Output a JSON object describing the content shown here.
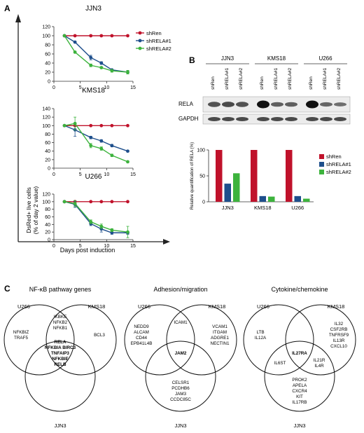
{
  "panels": {
    "a": "A",
    "b": "B",
    "c": "C"
  },
  "colors": {
    "shRen": "#c0122b",
    "shRELA1": "#1e4f8c",
    "shRELA2": "#3db33d",
    "axis": "#333333"
  },
  "panel_a": {
    "y_label_line1": "DsRed+ live cells",
    "y_label_line2": "(% of day 2 value)",
    "x_label": "Days post induction",
    "legend": [
      "shRen",
      "shRELA#1",
      "shRELA#2"
    ]
  },
  "chart_data": [
    {
      "type": "line",
      "title": "JJN3",
      "x": [
        2,
        4,
        7,
        9,
        11,
        14
      ],
      "xlim": [
        0,
        15
      ],
      "ylim": [
        0,
        120
      ],
      "xticks": [
        0,
        5,
        10,
        15
      ],
      "yticks": [
        0,
        20,
        40,
        60,
        80,
        100,
        120
      ],
      "series": [
        {
          "name": "shRen",
          "values": [
            100,
            100,
            100,
            100,
            100,
            100
          ]
        },
        {
          "name": "shRELA#1",
          "values": [
            100,
            86,
            52,
            40,
            25,
            20
          ]
        },
        {
          "name": "shRELA#2",
          "values": [
            100,
            64,
            35,
            30,
            23,
            20
          ]
        }
      ]
    },
    {
      "type": "line",
      "title": "KMS18",
      "x": [
        2,
        4,
        7,
        9,
        11,
        14
      ],
      "xlim": [
        0,
        15
      ],
      "ylim": [
        0,
        140
      ],
      "xticks": [
        0,
        5,
        10,
        15
      ],
      "yticks": [
        0,
        20,
        40,
        60,
        80,
        100,
        120,
        140
      ],
      "series": [
        {
          "name": "shRen",
          "values": [
            100,
            100,
            100,
            100,
            100,
            100
          ]
        },
        {
          "name": "shRELA#1",
          "values": [
            100,
            90,
            72,
            64,
            53,
            40
          ]
        },
        {
          "name": "shRELA#2",
          "values": [
            100,
            105,
            53,
            46,
            30,
            15
          ]
        }
      ]
    },
    {
      "type": "line",
      "title": "U266",
      "x": [
        2,
        4,
        7,
        9,
        11,
        14
      ],
      "xlim": [
        0,
        15
      ],
      "ylim": [
        0,
        120
      ],
      "xticks": [
        0,
        5,
        10,
        15
      ],
      "yticks": [
        0,
        20,
        40,
        60,
        80,
        100,
        120
      ],
      "series": [
        {
          "name": "shRen",
          "values": [
            100,
            100,
            100,
            100,
            100,
            100
          ]
        },
        {
          "name": "shRELA#1",
          "values": [
            100,
            93,
            42,
            28,
            18,
            18
          ]
        },
        {
          "name": "shRELA#2",
          "values": [
            100,
            95,
            47,
            35,
            25,
            20
          ]
        }
      ]
    },
    {
      "type": "bar",
      "categories": [
        "JJN3",
        "KMS18",
        "U266"
      ],
      "ylabel": "Relative quantification of RELA (%)",
      "ylim": [
        0,
        100
      ],
      "yticks": [
        0,
        50,
        100
      ],
      "legend_position": "right",
      "series": [
        {
          "name": "shRen",
          "values": [
            100,
            100,
            100
          ]
        },
        {
          "name": "shRELA#1",
          "values": [
            35,
            11,
            11
          ]
        },
        {
          "name": "shRELA#2",
          "values": [
            55,
            10,
            6
          ]
        }
      ]
    }
  ],
  "western": {
    "cell_lines": [
      "JJN3",
      "KMS18",
      "U266"
    ],
    "lanes": [
      "shRen",
      "shRELA#1",
      "shRELA#2"
    ],
    "bands": [
      "RELA",
      "GAPDH"
    ],
    "rela_intensity": [
      0.55,
      0.6,
      0.55,
      1.0,
      0.45,
      0.45,
      1.0,
      0.4,
      0.35
    ],
    "gapdh_intensity": [
      0.6,
      0.6,
      0.6,
      0.6,
      0.6,
      0.6,
      0.6,
      0.6,
      0.6
    ]
  },
  "venn": [
    {
      "title": "NF-κB pathway genes",
      "sets": [
        "U266",
        "KMS18",
        "JJN3"
      ],
      "u_only": [
        "NFKBIZ",
        "TRAF5"
      ],
      "k_only": [
        "BCL3"
      ],
      "uk": [
        "IKBKE",
        "NFKB2",
        "NFKB1"
      ],
      "uj": [],
      "kj": [],
      "j_only": [],
      "all": [
        "RELA",
        "NFKBIA BIRC3",
        "TNFAIP3",
        "NFKBIE",
        "RELB"
      ]
    },
    {
      "title": "Adhesion/migration",
      "sets": [
        "U266",
        "KMS18",
        "JJN3"
      ],
      "u_only": [
        "NEDD9",
        "ALCAM",
        "CD44",
        "EPB41L4B"
      ],
      "k_only": [
        "VCAM1",
        "ITGAM",
        "ADGRE1",
        "NECTIN1"
      ],
      "uk": [
        "ICAM1"
      ],
      "uj": [],
      "kj": [],
      "j_only": [
        "CELSR1",
        "PCDHB6",
        "JAM3",
        "CCDC85C"
      ],
      "all": [
        "JAM2"
      ]
    },
    {
      "title": "Cytokine/chemokine",
      "sets": [
        "U266",
        "KMS18",
        "JJN3"
      ],
      "u_only": [
        "LTB",
        "IL12A"
      ],
      "k_only": [
        "IL32",
        "CSF2RB",
        "TNFRSF9",
        "IL13R",
        "CXCL10"
      ],
      "uk": [],
      "uj": [
        "IL6ST"
      ],
      "kj": [
        "IL21R",
        "IL4R"
      ],
      "j_only": [
        "PROK2",
        "APELA",
        "CXCR4",
        "KIT",
        "IL17RB"
      ],
      "all": [
        "IL27RA"
      ]
    }
  ]
}
